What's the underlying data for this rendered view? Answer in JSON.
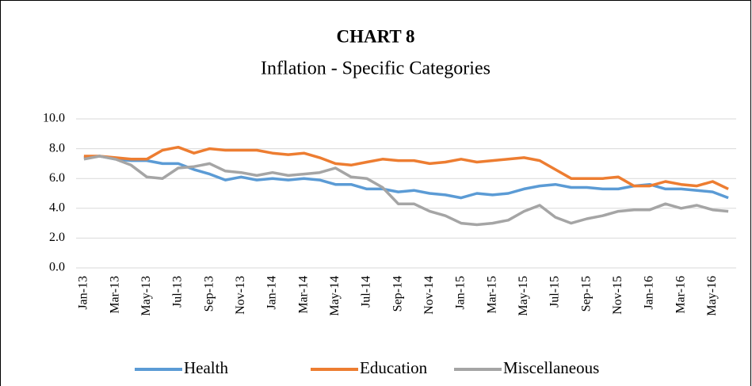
{
  "chart_data": {
    "type": "line",
    "title": "CHART 8",
    "subtitle": "Inflation - Specific Categories",
    "categories": [
      "Jan-13",
      null,
      "Mar-13",
      null,
      "May-13",
      null,
      "Jul-13",
      null,
      "Sep-13",
      null,
      "Nov-13",
      null,
      "Jan-14",
      null,
      "Mar-14",
      null,
      "May-14",
      null,
      "Jul-14",
      null,
      "Sep-14",
      null,
      "Nov-14",
      null,
      "Jan-15",
      null,
      "Mar-15",
      null,
      "May-15",
      null,
      "Jul-15",
      null,
      "Sep-15",
      null,
      "Nov-15",
      null,
      "Jan-16",
      null,
      "Mar-16",
      null,
      "May-16",
      null
    ],
    "series": [
      {
        "name": "Health",
        "color": "#5b9bd5",
        "values": [
          7.4,
          7.5,
          7.3,
          7.2,
          7.2,
          7.0,
          7.0,
          6.6,
          6.3,
          5.9,
          6.1,
          5.9,
          6.0,
          5.9,
          6.0,
          5.9,
          5.6,
          5.6,
          5.3,
          5.3,
          5.1,
          5.2,
          5.0,
          4.9,
          4.7,
          5.0,
          4.9,
          5.0,
          5.3,
          5.5,
          5.6,
          5.4,
          5.4,
          5.3,
          5.3,
          5.5,
          5.6,
          5.3,
          5.3,
          5.2,
          5.1,
          4.7
        ]
      },
      {
        "name": "Education",
        "color": "#ed7d31",
        "values": [
          7.5,
          7.5,
          7.4,
          7.3,
          7.3,
          7.9,
          8.1,
          7.7,
          8.0,
          7.9,
          7.9,
          7.9,
          7.7,
          7.6,
          7.7,
          7.4,
          7.0,
          6.9,
          7.1,
          7.3,
          7.2,
          7.2,
          7.0,
          7.1,
          7.3,
          7.1,
          7.2,
          7.3,
          7.4,
          7.2,
          6.6,
          6.0,
          6.0,
          6.0,
          6.1,
          5.5,
          5.5,
          5.8,
          5.6,
          5.5,
          5.8,
          5.3
        ]
      },
      {
        "name": "Miscellaneous",
        "color": "#a5a5a5",
        "values": [
          7.3,
          7.5,
          7.3,
          6.9,
          6.1,
          6.0,
          6.7,
          6.8,
          7.0,
          6.5,
          6.4,
          6.2,
          6.4,
          6.2,
          6.3,
          6.4,
          6.7,
          6.1,
          6.0,
          5.4,
          4.3,
          4.3,
          3.8,
          3.5,
          3.0,
          2.9,
          3.0,
          3.2,
          3.8,
          4.2,
          3.4,
          3.0,
          3.3,
          3.5,
          3.8,
          3.9,
          3.9,
          4.3,
          4.0,
          4.2,
          3.9,
          3.8
        ]
      }
    ],
    "ylim": [
      0,
      10
    ],
    "yticks": [
      {
        "value": 0,
        "label": "0.0"
      },
      {
        "value": 2,
        "label": "2.0"
      },
      {
        "value": 4,
        "label": "4.0"
      },
      {
        "value": 6,
        "label": "6.0"
      },
      {
        "value": 8,
        "label": "8.0"
      },
      {
        "value": 10,
        "label": "10.0"
      }
    ],
    "grid": true,
    "legend": "bottom"
  }
}
